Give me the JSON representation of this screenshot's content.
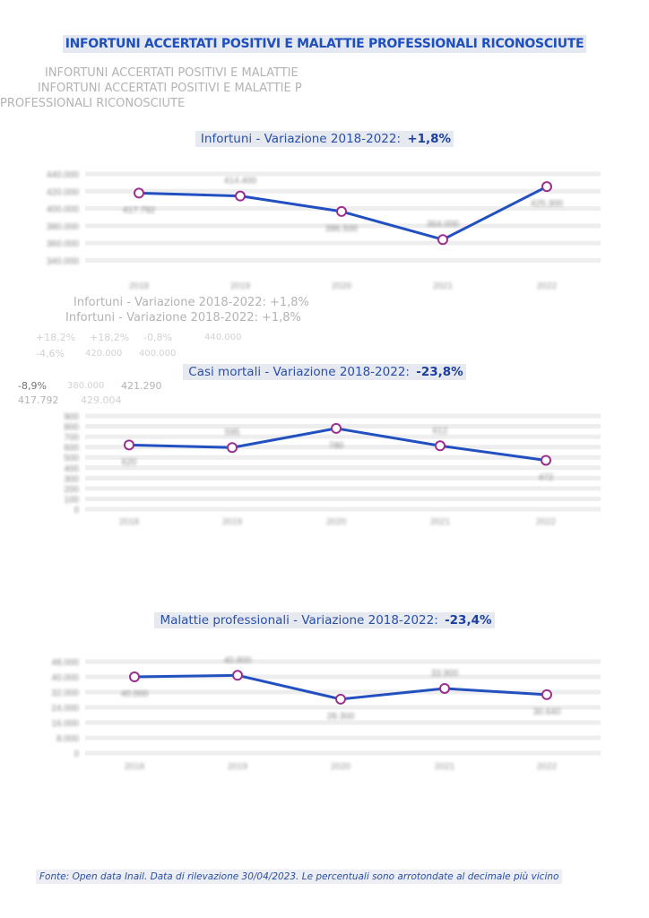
{
  "page": {
    "title": "INFORTUNI ACCERTATI POSITIVI E MALATTIE PROFESSIONALI RICONOSCIUTE",
    "footer": "Fonte: Open data Inail. Data di rilevazione 30/04/2023. Le percentuali sono arrotondate al decimale più vicino",
    "ghost_texts": {
      "title_line1": "INFORTUNI ACCERTATI POSITIVI E MALATTIE",
      "title_line2": "PROFESSIONALI RICONOSCIUTE",
      "title_overlap": "INFORTUNI ACCERTATI POSITIVI E MALATTIE P",
      "subtitle_a": "Infortuni - Variazione 2018-2022: +1,8%",
      "subtitle_b": "Infortuni - Variazione 2018-2022: +1,8%",
      "pct_a": "+18,2%",
      "pct_b": "-0,8%",
      "pct_c": "-4,6%",
      "pct_d": "-8,9%",
      "tick_440": "440.000",
      "tick_420": "420.000",
      "tick_400": "400.000",
      "tick_380": "380.000",
      "val_a": "421.290",
      "val_b": "417.792",
      "val_c": "429.004"
    }
  },
  "colors": {
    "line": "#2350c0",
    "marker": "#9b2f8f",
    "title": "#1f4fbf",
    "grid": "#eeeeee"
  },
  "chart_data": [
    {
      "type": "line",
      "title": "Infortuni - Variazione 2018-2022: ",
      "title_value": "+1,8%",
      "categories": [
        "2018",
        "2019",
        "2020",
        "2021",
        "2022"
      ],
      "values": [
        417792,
        414400,
        396500,
        364000,
        425300
      ],
      "ylim": [
        330000,
        440000
      ],
      "yticks": [
        340000,
        360000,
        380000,
        400000,
        420000,
        440000
      ],
      "grid": true,
      "labels_blurred": true
    },
    {
      "type": "line",
      "title": "Casi mortali - Variazione 2018-2022: ",
      "title_value": "-23,8%",
      "categories": [
        "2018",
        "2019",
        "2020",
        "2021",
        "2022"
      ],
      "values": [
        620,
        595,
        780,
        612,
        472
      ],
      "ylim": [
        0,
        900
      ],
      "yticks": [
        0,
        100,
        200,
        300,
        400,
        500,
        600,
        700,
        800,
        900
      ],
      "grid": true,
      "labels_blurred": true
    },
    {
      "type": "line",
      "title": "Malattie professionali - Variazione 2018-2022: ",
      "title_value": "-23,4%",
      "categories": [
        "2018",
        "2019",
        "2020",
        "2021",
        "2022"
      ],
      "values": [
        40000,
        40800,
        28300,
        33900,
        30640
      ],
      "ylim": [
        0,
        48000
      ],
      "yticks": [
        0,
        8000,
        16000,
        24000,
        32000,
        40000,
        48000
      ],
      "grid": true,
      "labels_blurred": true
    }
  ]
}
